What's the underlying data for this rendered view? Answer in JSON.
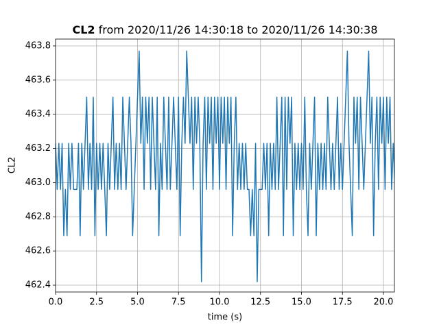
{
  "chart_data": {
    "type": "line",
    "title": [
      "CL2",
      "from 2020/11/26 14:30:18 to 2020/11/26 14:30:38"
    ],
    "xlabel": "time (s)",
    "ylabel": "CL2",
    "x": [
      0.0,
      0.1,
      0.2,
      0.3,
      0.4,
      0.5,
      0.6,
      0.7,
      0.8,
      0.9,
      1.0,
      1.1,
      1.2,
      1.3,
      1.4,
      1.5,
      1.6,
      1.7,
      1.8,
      1.9,
      2.0,
      2.1,
      2.2,
      2.3,
      2.4,
      2.5,
      2.6,
      2.7,
      2.8,
      2.9,
      3.0,
      3.1,
      3.2,
      3.3,
      3.4,
      3.5,
      3.6,
      3.7,
      3.8,
      3.9,
      4.0,
      4.1,
      4.2,
      4.3,
      4.4,
      4.5,
      4.6,
      4.7,
      4.8,
      4.9,
      5.0,
      5.1,
      5.2,
      5.3,
      5.4,
      5.5,
      5.6,
      5.7,
      5.8,
      5.9,
      6.0,
      6.1,
      6.2,
      6.3,
      6.4,
      6.5,
      6.6,
      6.7,
      6.8,
      6.9,
      7.0,
      7.1,
      7.2,
      7.3,
      7.4,
      7.5,
      7.6,
      7.7,
      7.8,
      7.9,
      8.0,
      8.1,
      8.2,
      8.3,
      8.4,
      8.5,
      8.6,
      8.7,
      8.8,
      8.9,
      9.0,
      9.1,
      9.2,
      9.3,
      9.4,
      9.5,
      9.6,
      9.7,
      9.8,
      9.9,
      10.0,
      10.1,
      10.2,
      10.3,
      10.4,
      10.5,
      10.6,
      10.7,
      10.8,
      10.9,
      11.0,
      11.1,
      11.2,
      11.3,
      11.4,
      11.5,
      11.6,
      11.7,
      11.8,
      11.9,
      12.0,
      12.1,
      12.2,
      12.3,
      12.4,
      12.5,
      12.6,
      12.7,
      12.8,
      12.9,
      13.0,
      13.1,
      13.2,
      13.3,
      13.4,
      13.5,
      13.6,
      13.7,
      13.8,
      13.9,
      14.0,
      14.1,
      14.2,
      14.3,
      14.4,
      14.5,
      14.6,
      14.7,
      14.8,
      14.9,
      15.0,
      15.1,
      15.2,
      15.3,
      15.4,
      15.5,
      15.6,
      15.7,
      15.8,
      15.9,
      16.0,
      16.1,
      16.2,
      16.3,
      16.4,
      16.5,
      16.6,
      16.7,
      16.8,
      16.9,
      17.0,
      17.1,
      17.2,
      17.3,
      17.4,
      17.5,
      17.6,
      17.7,
      17.8,
      17.9,
      18.0,
      18.1,
      18.2,
      18.3,
      18.4,
      18.5,
      18.6,
      18.7,
      18.8,
      18.9,
      19.0,
      19.1,
      19.2,
      19.3,
      19.4,
      19.5,
      19.6,
      19.7,
      19.8,
      19.9,
      20.0,
      20.1,
      20.2,
      20.3,
      20.4,
      20.5,
      20.6,
      20.7
    ],
    "series": [
      {
        "color": "#1f77b4",
        "values": [
          463.23,
          462.96,
          463.23,
          462.96,
          463.23,
          462.69,
          462.96,
          462.69,
          463.23,
          462.96,
          463.23,
          462.96,
          462.96,
          462.96,
          463.23,
          462.69,
          463.23,
          462.96,
          463.23,
          463.5,
          462.96,
          463.23,
          462.96,
          463.5,
          462.69,
          463.23,
          462.96,
          463.23,
          462.96,
          463.23,
          462.96,
          462.69,
          463.23,
          462.96,
          463.23,
          463.5,
          462.96,
          463.23,
          462.96,
          463.23,
          462.96,
          463.5,
          463.23,
          462.96,
          463.23,
          463.5,
          463.23,
          462.69,
          462.96,
          463.23,
          463.5,
          463.77,
          463.23,
          463.5,
          462.96,
          463.5,
          463.23,
          463.5,
          462.96,
          463.5,
          463.23,
          462.96,
          463.5,
          462.69,
          463.23,
          462.96,
          463.5,
          463.23,
          462.96,
          463.5,
          462.96,
          463.23,
          463.5,
          463.23,
          462.96,
          463.5,
          462.69,
          463.23,
          463.5,
          463.23,
          463.77,
          463.5,
          463.23,
          463.5,
          462.96,
          463.5,
          463.23,
          463.5,
          463.23,
          462.42,
          463.23,
          463.5,
          462.96,
          463.5,
          463.23,
          463.5,
          462.96,
          463.5,
          463.23,
          463.5,
          462.96,
          463.5,
          463.23,
          463.5,
          462.96,
          463.5,
          463.23,
          463.5,
          462.69,
          463.23,
          463.5,
          462.96,
          463.23,
          462.96,
          463.23,
          462.96,
          463.23,
          462.96,
          462.96,
          462.69,
          462.96,
          462.69,
          463.23,
          462.42,
          462.96,
          462.96,
          462.96,
          463.23,
          462.96,
          463.23,
          462.69,
          463.23,
          462.96,
          463.23,
          462.96,
          463.5,
          462.96,
          463.23,
          463.5,
          462.69,
          463.5,
          462.96,
          463.5,
          463.23,
          463.5,
          462.69,
          463.23,
          462.96,
          463.23,
          462.96,
          463.23,
          462.96,
          463.5,
          462.96,
          462.69,
          463.23,
          462.96,
          463.23,
          463.5,
          462.69,
          463.23,
          462.96,
          463.23,
          462.96,
          463.23,
          462.96,
          463.5,
          463.23,
          462.96,
          463.23,
          462.96,
          463.23,
          463.5,
          462.96,
          463.23,
          462.96,
          463.23,
          463.5,
          463.77,
          463.23,
          462.96,
          462.69,
          463.5,
          463.23,
          463.5,
          462.96,
          463.5,
          463.23,
          462.96,
          463.23,
          463.5,
          463.77,
          463.23,
          463.5,
          462.69,
          463.23,
          463.5,
          462.96,
          463.5,
          463.23,
          463.5,
          462.96,
          463.5,
          463.23,
          463.5,
          462.96,
          463.23,
          462.96
        ]
      }
    ],
    "xlim": [
      0,
      20.67
    ],
    "ylim": [
      462.36,
      463.84
    ],
    "xticks": [
      {
        "value": 0,
        "label": "0.0"
      },
      2.5,
      {
        "value": 5,
        "label": "5.0"
      },
      7.5,
      {
        "value": 10,
        "label": "10.0"
      },
      12.5,
      {
        "value": 15,
        "label": "15.0"
      },
      17.5,
      {
        "value": 20,
        "label": "20.0"
      }
    ],
    "yticks": [
      462.4,
      462.6,
      462.8,
      {
        "value": 463,
        "label": "463.0"
      },
      463.2,
      463.4,
      463.6,
      463.8
    ],
    "grid": true
  }
}
